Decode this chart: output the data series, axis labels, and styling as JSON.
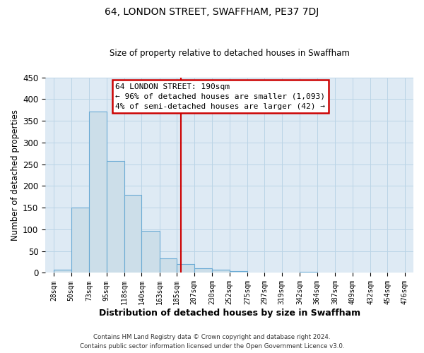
{
  "title": "64, LONDON STREET, SWAFFHAM, PE37 7DJ",
  "subtitle": "Size of property relative to detached houses in Swaffham",
  "xlabel": "Distribution of detached houses by size in Swaffham",
  "ylabel": "Number of detached properties",
  "bar_left_edges": [
    28,
    50,
    73,
    95,
    118,
    140,
    163,
    185,
    207,
    230,
    252,
    275,
    297,
    319,
    342,
    364,
    387,
    409,
    432,
    454
  ],
  "bar_widths": [
    22,
    23,
    22,
    23,
    22,
    23,
    22,
    22,
    23,
    22,
    23,
    22,
    22,
    23,
    22,
    23,
    22,
    23,
    22,
    22
  ],
  "bar_heights": [
    7,
    151,
    371,
    257,
    180,
    97,
    34,
    20,
    11,
    8,
    4,
    1,
    0,
    0,
    2,
    0,
    0,
    0,
    0,
    0
  ],
  "bar_color": "#ccdee9",
  "bar_edge_color": "#6aaad4",
  "tick_labels": [
    "28sqm",
    "50sqm",
    "73sqm",
    "95sqm",
    "118sqm",
    "140sqm",
    "163sqm",
    "185sqm",
    "207sqm",
    "230sqm",
    "252sqm",
    "275sqm",
    "297sqm",
    "319sqm",
    "342sqm",
    "364sqm",
    "387sqm",
    "409sqm",
    "432sqm",
    "454sqm",
    "476sqm"
  ],
  "tick_positions": [
    28,
    50,
    73,
    95,
    118,
    140,
    163,
    185,
    207,
    230,
    252,
    275,
    297,
    319,
    342,
    364,
    387,
    409,
    432,
    454,
    476
  ],
  "ylim": [
    0,
    450
  ],
  "xlim": [
    17,
    487
  ],
  "vline_x": 190,
  "vline_color": "#cc0000",
  "annotation_title": "64 LONDON STREET: 190sqm",
  "annotation_line1": "← 96% of detached houses are smaller (1,093)",
  "annotation_line2": "4% of semi-detached houses are larger (42) →",
  "annotation_box_color": "#cc0000",
  "grid_color": "#bad4e6",
  "bg_color": "#deeaf4",
  "footnote1": "Contains HM Land Registry data © Crown copyright and database right 2024.",
  "footnote2": "Contains public sector information licensed under the Open Government Licence v3.0."
}
